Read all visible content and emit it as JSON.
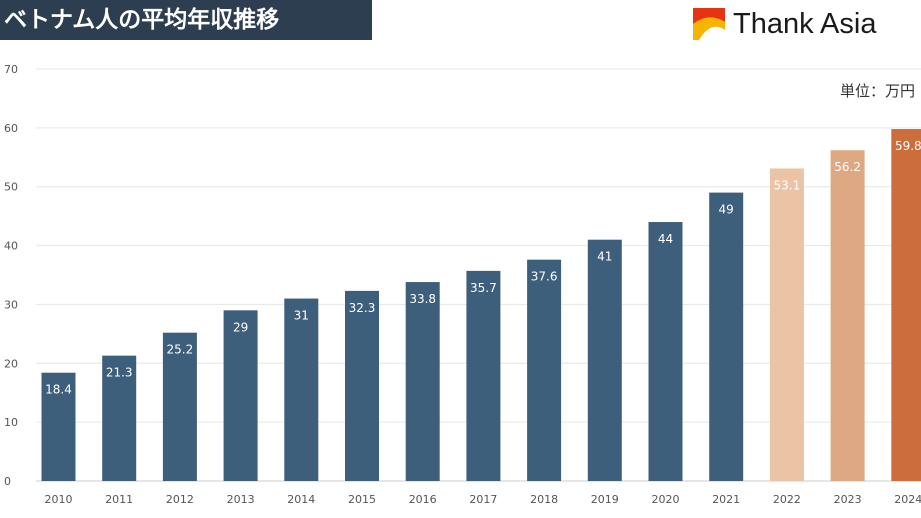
{
  "title": "ベトナム人の平均年収推移",
  "brand": {
    "name": "Thank Asia",
    "logo_colors": [
      "#e63312",
      "#f5b400",
      "#1f2a6b"
    ]
  },
  "unit_label": "単位：万円",
  "colors": {
    "actual": "#3e5f7c",
    "forecast_2022": "#eac4a4",
    "forecast_2023": "#dea883",
    "forecast_2024": "#cc6e3c",
    "grid": "#e6e6e6",
    "axis_text": "#555555"
  },
  "chart_data": {
    "type": "bar",
    "categories": [
      "2010",
      "2011",
      "2012",
      "2013",
      "2014",
      "2015",
      "2016",
      "2017",
      "2018",
      "2019",
      "2020",
      "2021",
      "2022",
      "2023",
      "2024"
    ],
    "values": [
      18.4,
      21.3,
      25.2,
      29,
      31,
      32.3,
      33.8,
      35.7,
      37.6,
      41,
      44,
      49,
      53.1,
      56.2,
      59.8
    ],
    "data_labels": [
      "18.4",
      "21.3",
      "25.2",
      "29",
      "31",
      "32.3",
      "33.8",
      "35.7",
      "37.6",
      "41",
      "44",
      "49",
      "53.1",
      "56.2",
      "59.8"
    ],
    "bar_colors": [
      "#3e5f7c",
      "#3e5f7c",
      "#3e5f7c",
      "#3e5f7c",
      "#3e5f7c",
      "#3e5f7c",
      "#3e5f7c",
      "#3e5f7c",
      "#3e5f7c",
      "#3e5f7c",
      "#3e5f7c",
      "#3e5f7c",
      "#eac4a4",
      "#dea883",
      "#cc6e3c"
    ],
    "y_ticks": [
      "0",
      "10",
      "20",
      "30",
      "40",
      "50",
      "60",
      "70"
    ],
    "ylim": [
      0,
      70
    ],
    "grid": true,
    "title": "ベトナム人の平均年収推移",
    "ylabel": "単位：万円",
    "xlabel": ""
  }
}
